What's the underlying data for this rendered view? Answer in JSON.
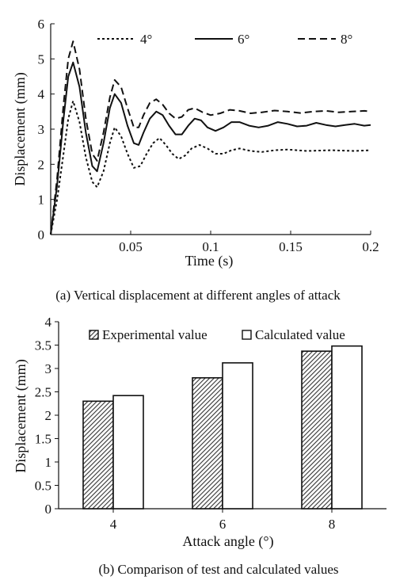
{
  "chart_data": [
    {
      "type": "line",
      "title": "",
      "xlabel": "Time (s)",
      "ylabel": "Displacement (mm)",
      "xlim": [
        0,
        0.2
      ],
      "ylim": [
        0,
        6
      ],
      "xticks": [
        "0.05",
        "0.1",
        "0.15",
        "0.2"
      ],
      "yticks": [
        "0",
        "1",
        "2",
        "3",
        "4",
        "5",
        "6"
      ],
      "grid": false,
      "legend_position": "top",
      "series": [
        {
          "name": "4°",
          "style": "dotted",
          "x": [
            0,
            0.004,
            0.008,
            0.011,
            0.014,
            0.018,
            0.022,
            0.026,
            0.029,
            0.033,
            0.037,
            0.04,
            0.044,
            0.048,
            0.052,
            0.056,
            0.06,
            0.064,
            0.068,
            0.072,
            0.076,
            0.08,
            0.084,
            0.088,
            0.093,
            0.098,
            0.103,
            0.108,
            0.113,
            0.118,
            0.125,
            0.132,
            0.14,
            0.148,
            0.16,
            0.175,
            0.19,
            0.2
          ],
          "values": [
            0,
            1.0,
            2.3,
            3.3,
            3.8,
            3.2,
            2.2,
            1.5,
            1.35,
            1.8,
            2.6,
            3.05,
            2.8,
            2.3,
            1.9,
            1.95,
            2.3,
            2.6,
            2.75,
            2.55,
            2.3,
            2.15,
            2.25,
            2.45,
            2.55,
            2.45,
            2.3,
            2.3,
            2.4,
            2.45,
            2.38,
            2.35,
            2.4,
            2.42,
            2.38,
            2.4,
            2.38,
            2.4
          ]
        },
        {
          "name": "6°",
          "style": "solid",
          "x": [
            0,
            0.004,
            0.008,
            0.011,
            0.014,
            0.018,
            0.022,
            0.026,
            0.029,
            0.033,
            0.037,
            0.04,
            0.044,
            0.048,
            0.052,
            0.055,
            0.058,
            0.062,
            0.066,
            0.07,
            0.074,
            0.078,
            0.082,
            0.086,
            0.09,
            0.094,
            0.098,
            0.103,
            0.108,
            0.113,
            0.118,
            0.124,
            0.13,
            0.136,
            0.142,
            0.148,
            0.154,
            0.16,
            0.166,
            0.172,
            0.178,
            0.184,
            0.19,
            0.196,
            0.2
          ],
          "values": [
            0,
            1.4,
            3.3,
            4.5,
            4.9,
            4.2,
            2.9,
            1.95,
            1.8,
            2.6,
            3.6,
            4.0,
            3.75,
            3.1,
            2.6,
            2.55,
            2.9,
            3.3,
            3.5,
            3.4,
            3.1,
            2.85,
            2.85,
            3.1,
            3.3,
            3.25,
            3.05,
            2.95,
            3.05,
            3.2,
            3.2,
            3.1,
            3.05,
            3.1,
            3.2,
            3.15,
            3.08,
            3.1,
            3.18,
            3.12,
            3.08,
            3.12,
            3.15,
            3.1,
            3.12
          ]
        },
        {
          "name": "8°",
          "style": "dashed",
          "x": [
            0,
            0.004,
            0.008,
            0.011,
            0.014,
            0.018,
            0.022,
            0.026,
            0.029,
            0.033,
            0.037,
            0.04,
            0.044,
            0.048,
            0.052,
            0.055,
            0.058,
            0.062,
            0.066,
            0.07,
            0.074,
            0.078,
            0.082,
            0.086,
            0.09,
            0.095,
            0.1,
            0.106,
            0.112,
            0.118,
            0.125,
            0.132,
            0.14,
            0.148,
            0.156,
            0.164,
            0.172,
            0.18,
            0.188,
            0.196,
            0.2
          ],
          "values": [
            0,
            1.6,
            3.7,
            5.0,
            5.5,
            4.7,
            3.3,
            2.3,
            2.1,
            2.9,
            3.9,
            4.4,
            4.2,
            3.6,
            3.05,
            3.05,
            3.4,
            3.75,
            3.85,
            3.7,
            3.45,
            3.3,
            3.35,
            3.55,
            3.6,
            3.48,
            3.4,
            3.45,
            3.55,
            3.52,
            3.45,
            3.48,
            3.53,
            3.5,
            3.46,
            3.5,
            3.52,
            3.48,
            3.5,
            3.52,
            3.5
          ]
        }
      ],
      "caption": "(a) Vertical displacement at different angles of attack"
    },
    {
      "type": "bar",
      "title": "",
      "xlabel": "Attack angle (°)",
      "ylabel": "Displacement (mm)",
      "ylim": [
        0,
        4
      ],
      "yticks": [
        "0",
        "0.5",
        "1",
        "1.5",
        "2",
        "2.5",
        "3",
        "3.5",
        "4"
      ],
      "categories": [
        "4",
        "6",
        "8"
      ],
      "grid": false,
      "legend_position": "top",
      "series": [
        {
          "name": "Experimental value",
          "fill": "hatched",
          "values": [
            2.3,
            2.8,
            3.37
          ]
        },
        {
          "name": "Calculated value",
          "fill": "white",
          "values": [
            2.42,
            3.12,
            3.48
          ]
        }
      ],
      "caption": "(b) Comparison of test and calculated values"
    }
  ]
}
